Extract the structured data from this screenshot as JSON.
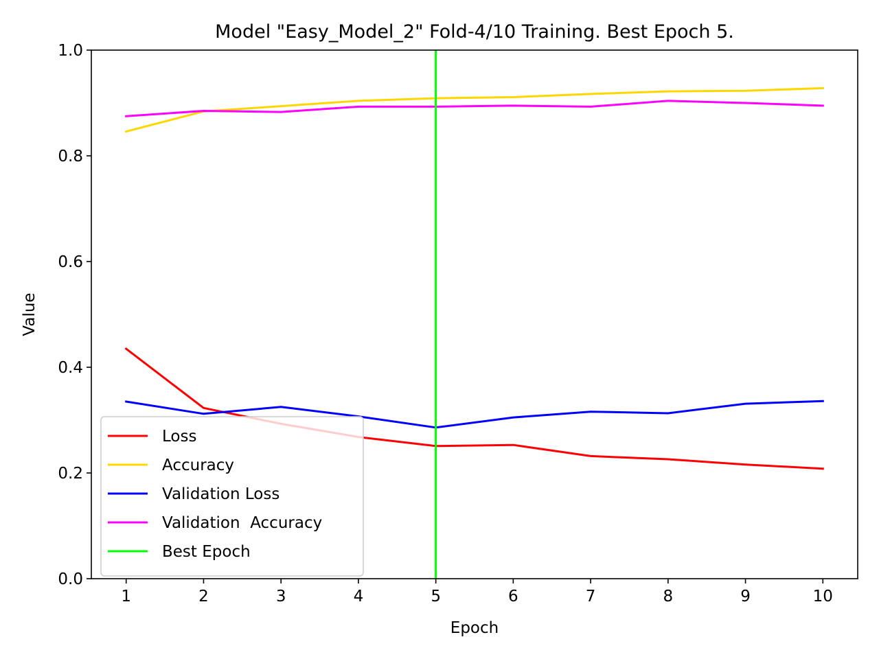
{
  "chart_data": {
    "type": "line",
    "title": "Model \"Easy_Model_2\" Fold-4/10 Training. Best Epoch 5.",
    "xlabel": "Epoch",
    "ylabel": "Value",
    "x": [
      1,
      2,
      3,
      4,
      5,
      6,
      7,
      8,
      9,
      10
    ],
    "xlim": [
      0.55,
      10.45
    ],
    "ylim": [
      0.0,
      1.0
    ],
    "yticks": [
      "0.0",
      "0.2",
      "0.4",
      "0.6",
      "0.8",
      "1.0"
    ],
    "xticks": [
      "1",
      "2",
      "3",
      "4",
      "5",
      "6",
      "7",
      "8",
      "9",
      "10"
    ],
    "grid": false,
    "legend_position": "lower-left",
    "series": [
      {
        "name": "Loss",
        "color": "#ff0000",
        "values": [
          0.435,
          0.323,
          0.293,
          0.268,
          0.251,
          0.253,
          0.232,
          0.226,
          0.216,
          0.208
        ]
      },
      {
        "name": "Accuracy",
        "color": "#ffd700",
        "values": [
          0.846,
          0.884,
          0.894,
          0.904,
          0.909,
          0.911,
          0.917,
          0.922,
          0.923,
          0.928
        ]
      },
      {
        "name": "Validation Loss",
        "color": "#0000ff",
        "values": [
          0.335,
          0.312,
          0.325,
          0.307,
          0.286,
          0.305,
          0.316,
          0.313,
          0.331,
          0.336
        ]
      },
      {
        "name": "Validation  Accuracy",
        "color": "#ff00ff",
        "values": [
          0.875,
          0.885,
          0.883,
          0.893,
          0.893,
          0.895,
          0.893,
          0.904,
          0.9,
          0.895
        ]
      }
    ],
    "best_epoch": {
      "name": "Best Epoch",
      "color": "#00ff00",
      "x": 5
    }
  }
}
